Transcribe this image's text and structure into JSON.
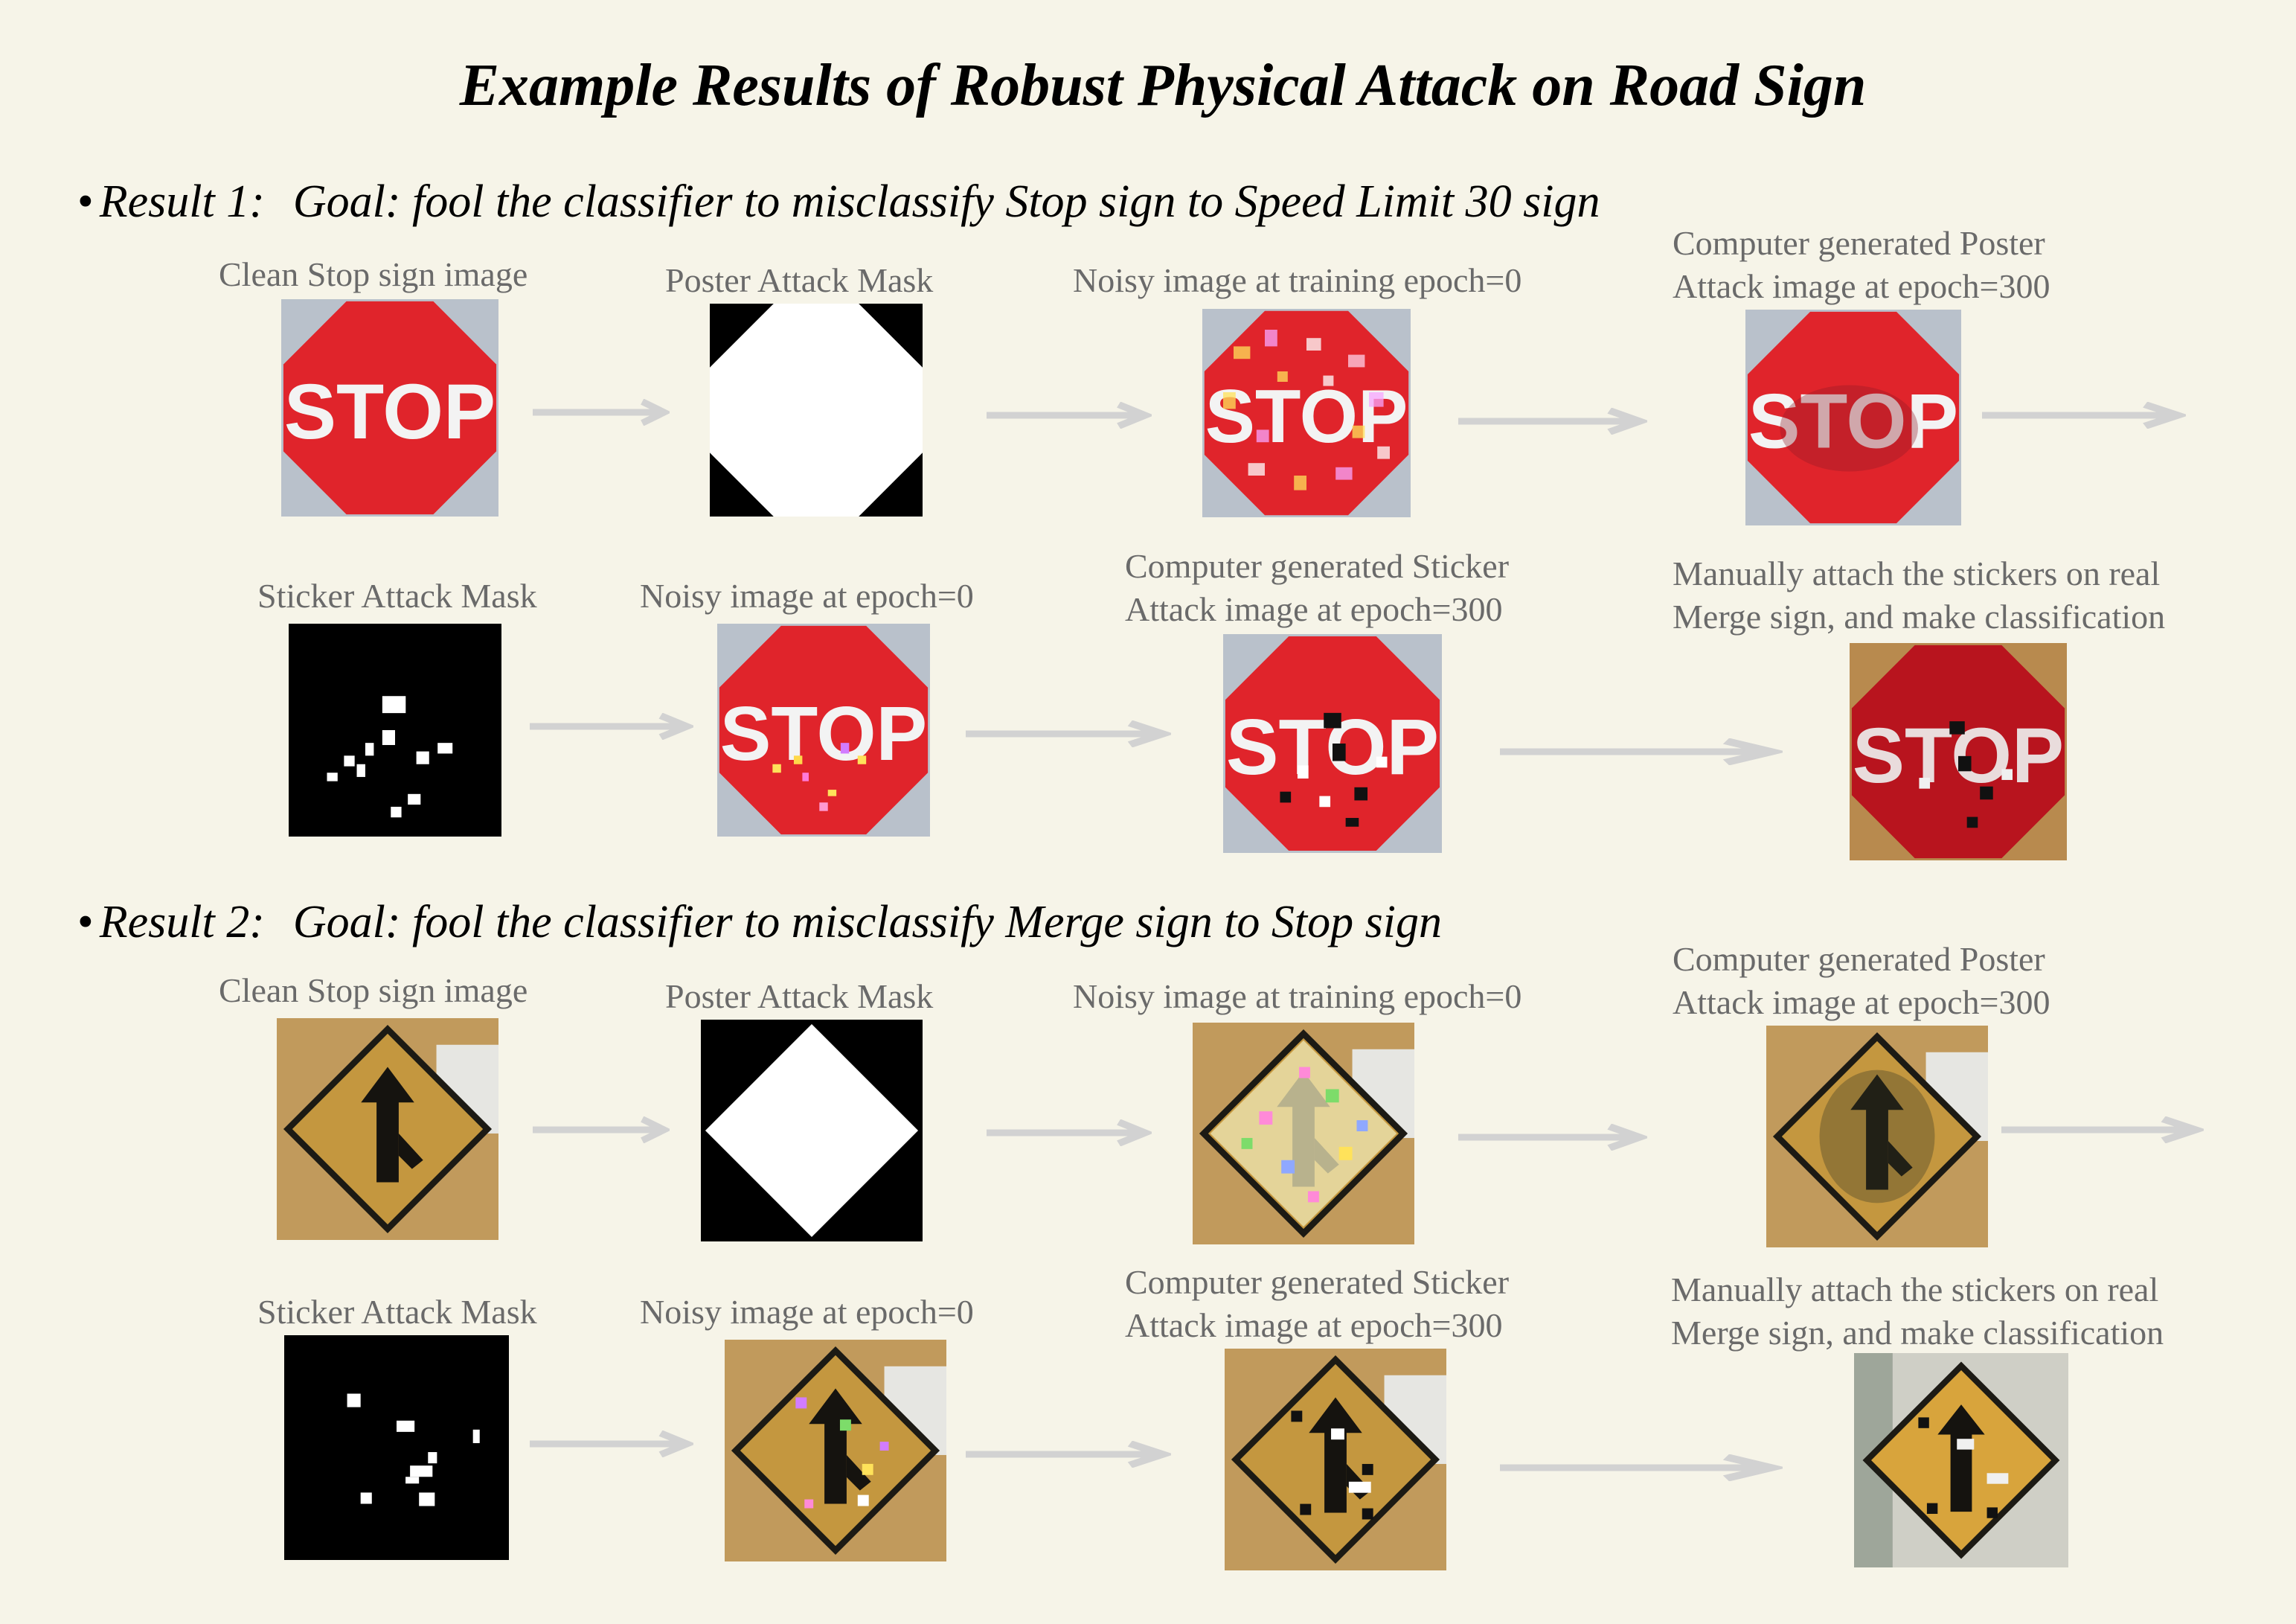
{
  "title": "Example Results of Robust Physical Attack on Road Sign",
  "result1": {
    "label": "Result 1:",
    "goal": "Goal: fool the classifier to misclassify Stop sign to Speed Limit 30 sign",
    "captions": {
      "clean": "Clean Stop sign image",
      "poster_mask": "Poster Attack Mask",
      "noisy_training": "Noisy image at training epoch=0",
      "poster_generated_1": "Computer generated Poster",
      "poster_generated_2": "Attack image at epoch=300",
      "sticker_mask": "Sticker Attack Mask",
      "noisy_epoch": "Noisy image at epoch=0",
      "sticker_generated_1": "Computer generated Sticker",
      "sticker_generated_2": "Attack image at epoch=300",
      "manual_1": "Manually attach the stickers on real",
      "manual_2": "Merge sign, and make classification"
    }
  },
  "result2": {
    "label": "Result 2:",
    "goal": "Goal: fool the classifier to misclassify Merge sign to Stop sign",
    "captions": {
      "clean": "Clean Stop sign image",
      "poster_mask": "Poster Attack Mask",
      "noisy_training": "Noisy image at training epoch=0",
      "poster_generated_1": "Computer generated Poster",
      "poster_generated_2": "Attack image at epoch=300",
      "sticker_mask": "Sticker Attack Mask",
      "noisy_epoch": "Noisy image at epoch=0",
      "sticker_generated_1": "Computer generated Sticker",
      "sticker_generated_2": "Attack image at epoch=300",
      "manual_1": "Manually attach the stickers on real",
      "manual_2": "Merge sign, and make classification"
    }
  },
  "stop_text": "STOP",
  "colors": {
    "background": "#f6f4e8",
    "stop_red": "#e0242b",
    "merge_yellow": "#c4973f",
    "caption_gray": "#6a6a6a",
    "arrow_gray": "#d2d2d2"
  }
}
